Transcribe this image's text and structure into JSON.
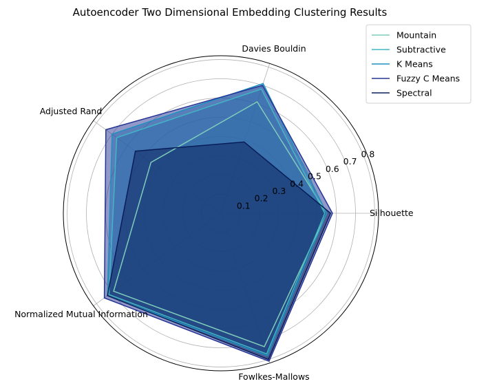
{
  "chart_data": {
    "type": "radar",
    "title": "Autoencoder Two Dimensional Embedding Clustering Results",
    "axes": [
      "Silhouette",
      "Davies Bouldin",
      "Adjusted Rand",
      "Normalized Mutual Information",
      "Fowlkes-Mallows"
    ],
    "rticks": [
      "0.1",
      "0.2",
      "0.3",
      "0.4",
      "0.5",
      "0.6",
      "0.7",
      "0.8"
    ],
    "rlim": [
      0,
      0.82
    ],
    "grid": true,
    "legend_position": "top-right",
    "series": [
      {
        "name": "Mountain",
        "color": "#7fcdbb",
        "values": [
          0.55,
          0.61,
          0.45,
          0.69,
          0.73
        ]
      },
      {
        "name": "Subtractive",
        "color": "#41b6c4",
        "values": [
          0.54,
          0.68,
          0.67,
          0.72,
          0.77
        ]
      },
      {
        "name": "K Means",
        "color": "#1d91c0",
        "values": [
          0.55,
          0.71,
          0.7,
          0.73,
          0.78
        ]
      },
      {
        "name": "Fuzzy C Means",
        "color": "#253494",
        "values": [
          0.58,
          0.7,
          0.74,
          0.75,
          0.81
        ]
      },
      {
        "name": "Spectral",
        "color": "#081d58",
        "values": [
          0.57,
          0.39,
          0.55,
          0.73,
          0.8
        ]
      }
    ]
  }
}
